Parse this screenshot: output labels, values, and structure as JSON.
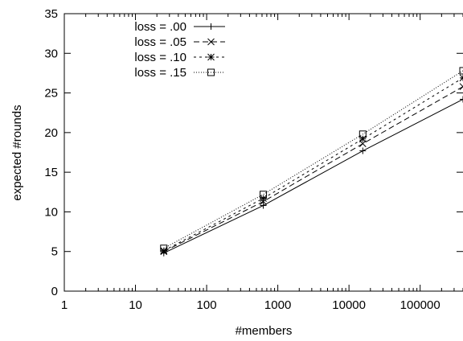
{
  "chart_data": {
    "type": "line",
    "xlabel": "#members",
    "ylabel": "expected #rounds",
    "xscale": "log",
    "xlim": [
      1,
      400000
    ],
    "ylim": [
      0,
      35
    ],
    "x_ticks": [
      1,
      10,
      100,
      1000,
      10000,
      100000
    ],
    "x_tick_labels": [
      "1",
      "10",
      "100",
      "1000",
      "10000",
      "100000"
    ],
    "y_ticks": [
      0,
      5,
      10,
      15,
      20,
      25,
      30,
      35
    ],
    "y_tick_labels": [
      "0",
      "5",
      "10",
      "15",
      "20",
      "25",
      "30",
      "35"
    ],
    "grid": false,
    "legend_position": "top-left",
    "series": [
      {
        "name": "loss = .00",
        "style": "solid",
        "marker": "plus",
        "x": [
          25,
          625,
          15625,
          400000
        ],
        "y": [
          4.8,
          10.8,
          17.7,
          24.2
        ]
      },
      {
        "name": "loss = .05",
        "style": "dashed",
        "marker": "cross",
        "x": [
          25,
          625,
          15625,
          400000
        ],
        "y": [
          5.0,
          11.3,
          18.6,
          25.8
        ]
      },
      {
        "name": "loss = .10",
        "style": "short-dashed",
        "marker": "asterisk",
        "x": [
          25,
          625,
          15625,
          400000
        ],
        "y": [
          5.1,
          11.7,
          19.2,
          26.9
        ]
      },
      {
        "name": "loss = .15",
        "style": "dotted",
        "marker": "square",
        "x": [
          25,
          625,
          15625,
          400000
        ],
        "y": [
          5.4,
          12.2,
          19.8,
          27.8
        ]
      }
    ]
  }
}
